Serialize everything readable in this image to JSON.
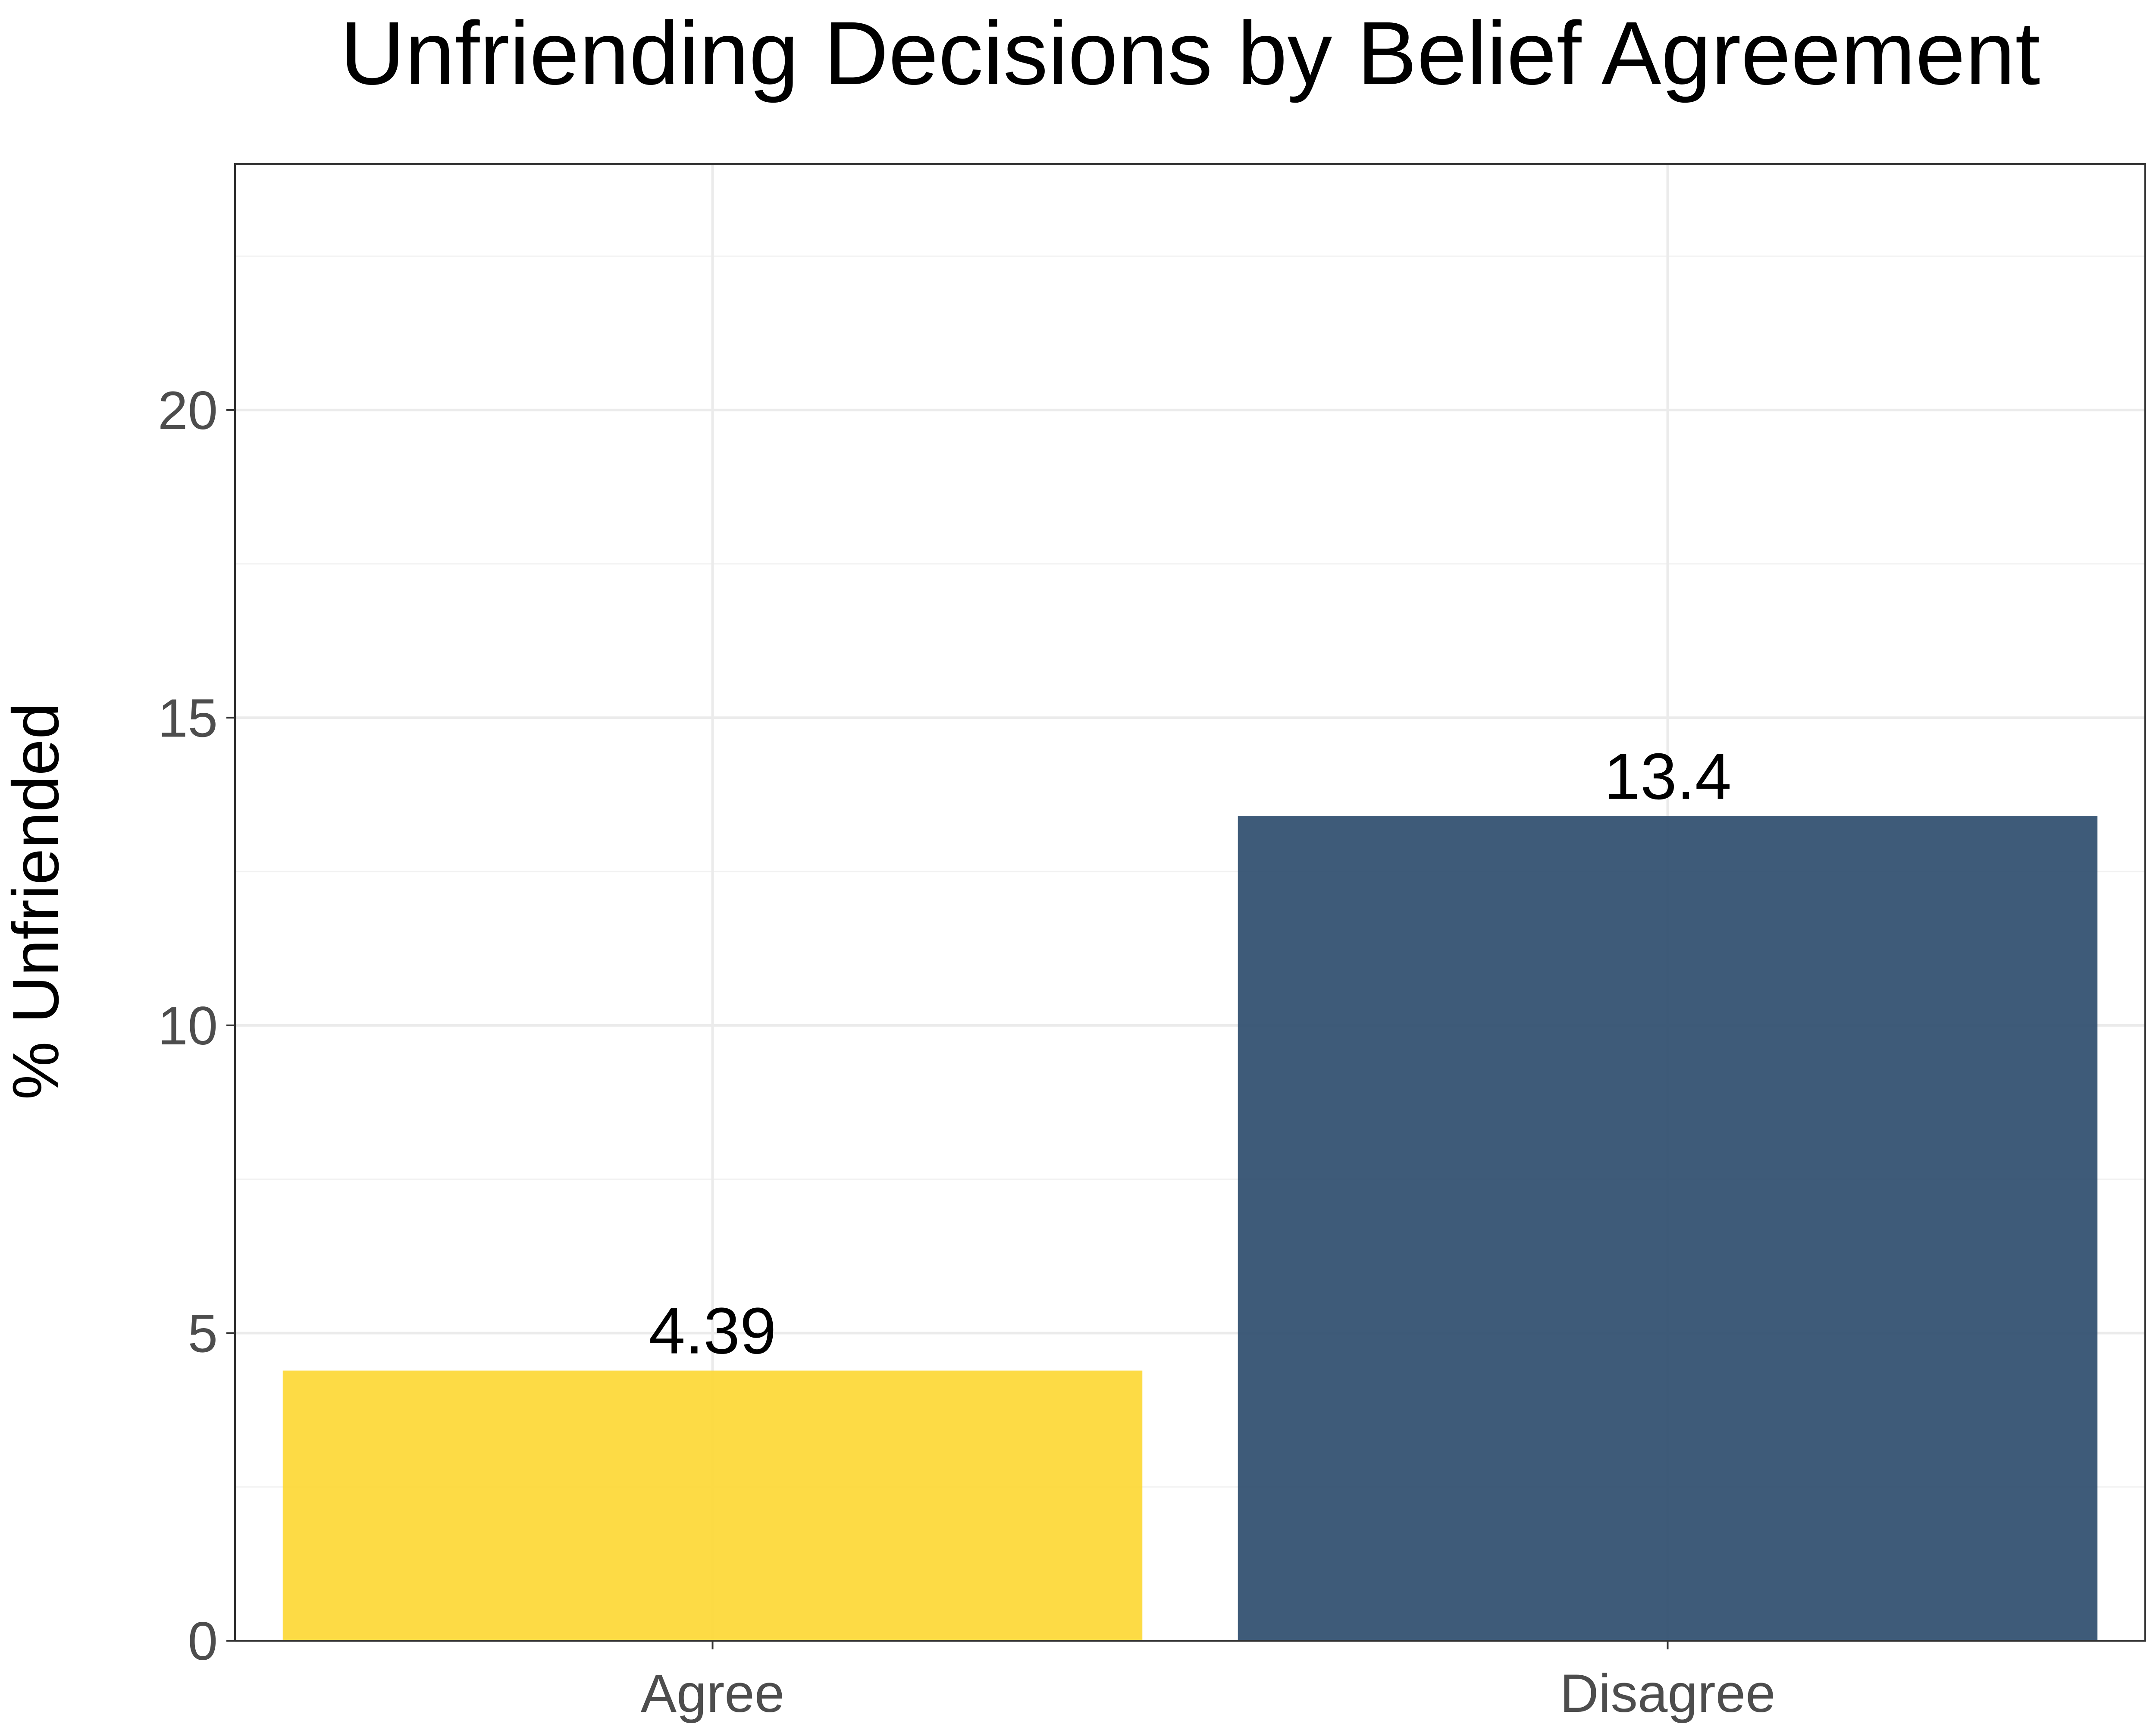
{
  "chart_data": {
    "type": "bar",
    "title": "Unfriending Decisions by Belief Agreement",
    "xlabel": "",
    "ylabel": "% Unfriended",
    "categories": [
      "Agree",
      "Disagree"
    ],
    "values": [
      4.39,
      13.4
    ],
    "data_labels": [
      "4.39",
      "13.4"
    ],
    "bar_colors": [
      "#FDD835",
      "#2E4D6E"
    ],
    "ylim": [
      0,
      24
    ],
    "y_ticks": [
      0,
      5,
      10,
      15,
      20
    ],
    "y_tick_labels": [
      "0",
      "5",
      "10",
      "15",
      "20"
    ],
    "grid": true,
    "legend": "none"
  }
}
